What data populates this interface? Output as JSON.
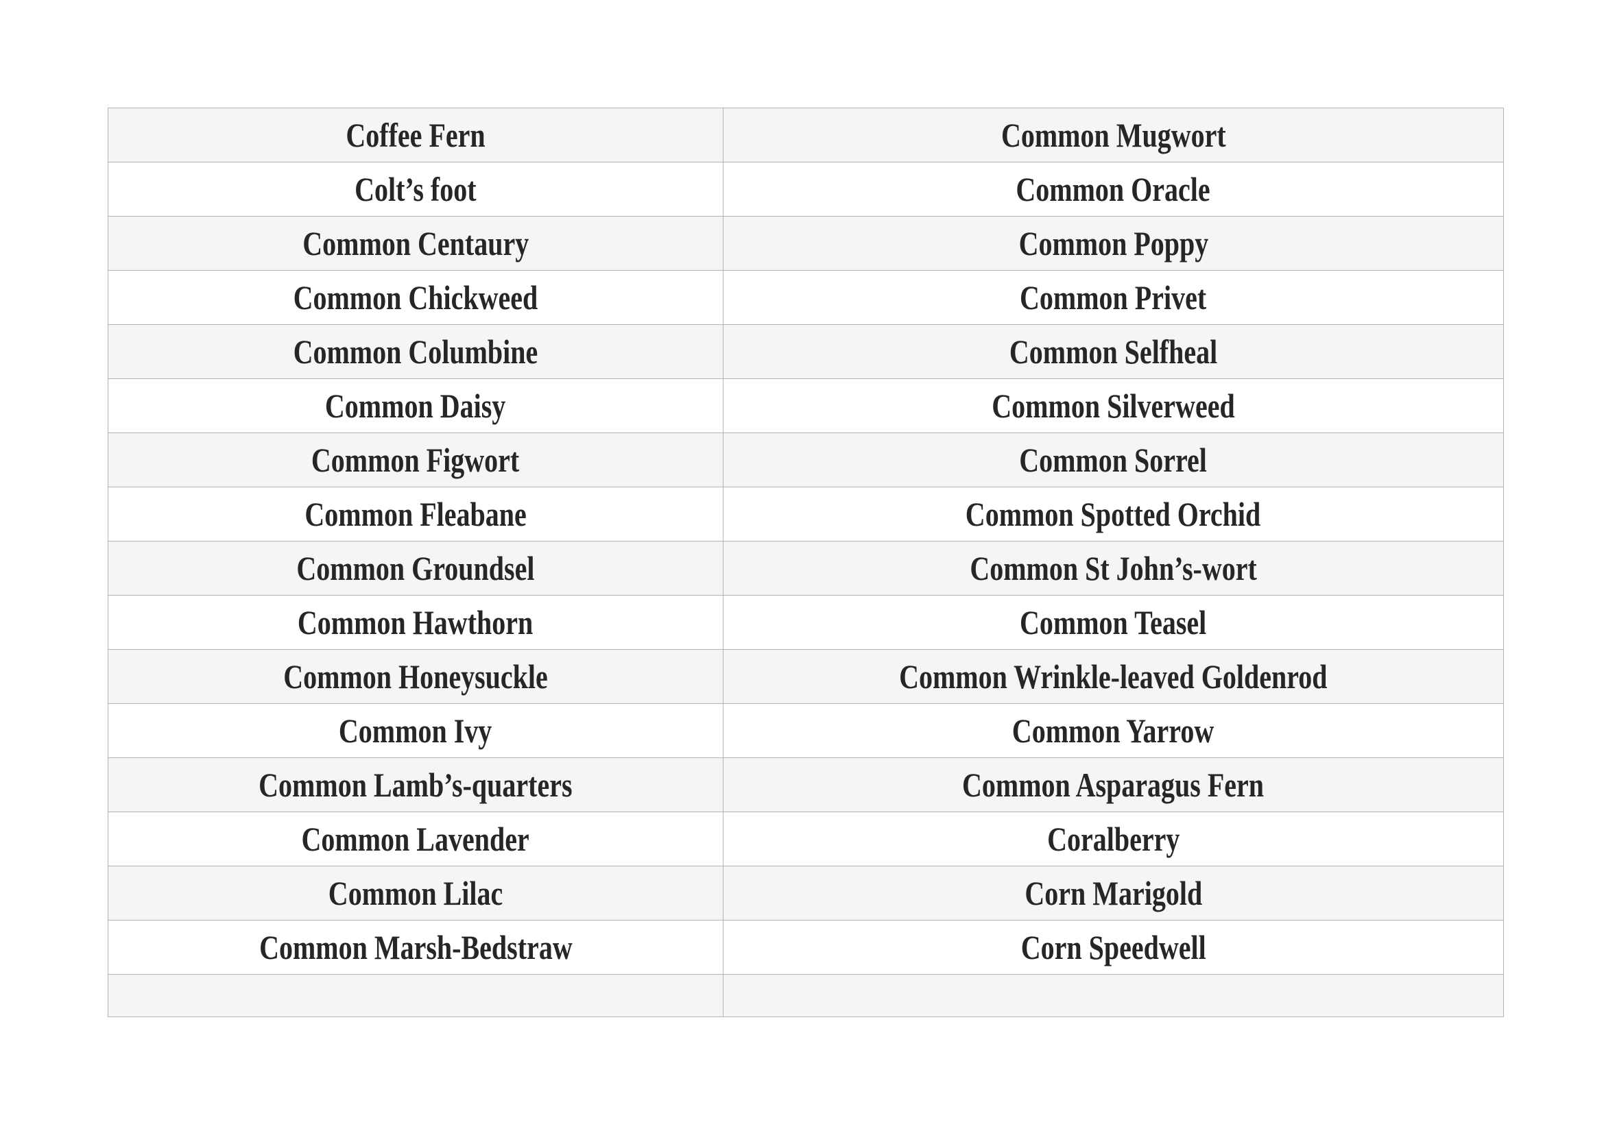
{
  "rows": [
    [
      "Coffee Fern",
      "Common Mugwort"
    ],
    [
      "Colt’s foot",
      "Common Oracle"
    ],
    [
      "Common Centaury",
      "Common Poppy"
    ],
    [
      "Common Chickweed",
      "Common Privet"
    ],
    [
      "Common Columbine",
      "Common Selfheal"
    ],
    [
      "Common Daisy",
      "Common Silverweed"
    ],
    [
      "Common Figwort",
      "Common Sorrel"
    ],
    [
      "Common Fleabane",
      "Common Spotted Orchid"
    ],
    [
      "Common Groundsel",
      "Common St John’s-wort"
    ],
    [
      "Common Hawthorn",
      "Common Teasel"
    ],
    [
      "Common Honeysuckle",
      "Common Wrinkle-leaved Goldenrod"
    ],
    [
      "Common Ivy",
      "Common Yarrow"
    ],
    [
      "Common Lamb’s-quarters",
      "Common Asparagus Fern"
    ],
    [
      "Common Lavender",
      "Coralberry"
    ],
    [
      "Common Lilac",
      "Corn Marigold"
    ],
    [
      "Common Marsh-Bedstraw",
      "Corn Speedwell"
    ],
    [
      "",
      ""
    ]
  ]
}
